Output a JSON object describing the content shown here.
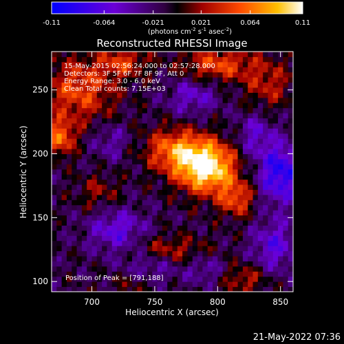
{
  "chart_data": {
    "type": "heatmap",
    "title": "Reconstructed RHESSI Image",
    "xlabel": "Heliocentric X (arcsec)",
    "ylabel": "Heliocentric Y (arcsec)",
    "xlim": [
      668,
      860
    ],
    "ylim": [
      92,
      280
    ],
    "xticks": [
      700,
      750,
      800,
      850
    ],
    "yticks": [
      100,
      150,
      200,
      250
    ],
    "colorbar": {
      "min": -0.11,
      "max": 0.11,
      "ticks": [
        "-0.11",
        "-0.064",
        "-0.021",
        "0.021",
        "0.064",
        "0.11"
      ],
      "tick_values": [
        -0.11,
        -0.064,
        -0.021,
        0.021,
        0.064,
        0.11
      ],
      "unit_prefix": "(photons cm",
      "unit_exp1": "-2",
      "unit_mid": " s",
      "unit_exp2": "-1",
      "unit_mid2": " asec",
      "unit_exp3": "-2",
      "unit_suffix": ")"
    },
    "annotations": [
      "15-May-2015 02:56:24.000 to 02:57:28.000",
      "Detectors: 3F 5F 6F 7F 8F 9F, Att 0",
      "Energy Range: 3.0 - 6.0 keV",
      "Clean     Total counts: 7.15E+03"
    ],
    "peak_label": "Position of Peak = [791,188]",
    "peak": [
      791,
      188
    ],
    "blobs": [
      {
        "x": 791,
        "y": 190,
        "sx": 16,
        "sy": 14,
        "a": 0.13
      },
      {
        "x": 765,
        "y": 203,
        "sx": 16,
        "sy": 12,
        "a": 0.07
      },
      {
        "x": 815,
        "y": 165,
        "sx": 10,
        "sy": 10,
        "a": 0.06
      },
      {
        "x": 675,
        "y": 213,
        "sx": 8,
        "sy": 10,
        "a": 0.07
      },
      {
        "x": 690,
        "y": 250,
        "sx": 20,
        "sy": 18,
        "a": 0.06
      },
      {
        "x": 725,
        "y": 272,
        "sx": 14,
        "sy": 8,
        "a": 0.05
      },
      {
        "x": 800,
        "y": 270,
        "sx": 20,
        "sy": 9,
        "a": 0.06
      },
      {
        "x": 840,
        "y": 255,
        "sx": 14,
        "sy": 14,
        "a": 0.04
      },
      {
        "x": 760,
        "y": 125,
        "sx": 22,
        "sy": 8,
        "a": 0.04
      },
      {
        "x": 705,
        "y": 170,
        "sx": 12,
        "sy": 10,
        "a": 0.03
      },
      {
        "x": 822,
        "y": 102,
        "sx": 12,
        "sy": 8,
        "a": 0.04
      },
      {
        "x": 735,
        "y": 100,
        "sx": 14,
        "sy": 8,
        "a": 0.03
      },
      {
        "x": 720,
        "y": 140,
        "sx": 16,
        "sy": 12,
        "a": -0.05
      },
      {
        "x": 715,
        "y": 210,
        "sx": 10,
        "sy": 10,
        "a": -0.03
      },
      {
        "x": 850,
        "y": 185,
        "sx": 12,
        "sy": 16,
        "a": -0.08
      },
      {
        "x": 780,
        "y": 245,
        "sx": 14,
        "sy": 10,
        "a": -0.04
      },
      {
        "x": 745,
        "y": 110,
        "sx": 16,
        "sy": 10,
        "a": -0.04
      },
      {
        "x": 830,
        "y": 215,
        "sx": 10,
        "sy": 12,
        "a": -0.04
      },
      {
        "x": 845,
        "y": 128,
        "sx": 12,
        "sy": 14,
        "a": -0.05
      },
      {
        "x": 790,
        "y": 110,
        "sx": 10,
        "sy": 8,
        "a": -0.03
      }
    ]
  },
  "footer": {
    "date": "21-May-2022 07:36"
  }
}
